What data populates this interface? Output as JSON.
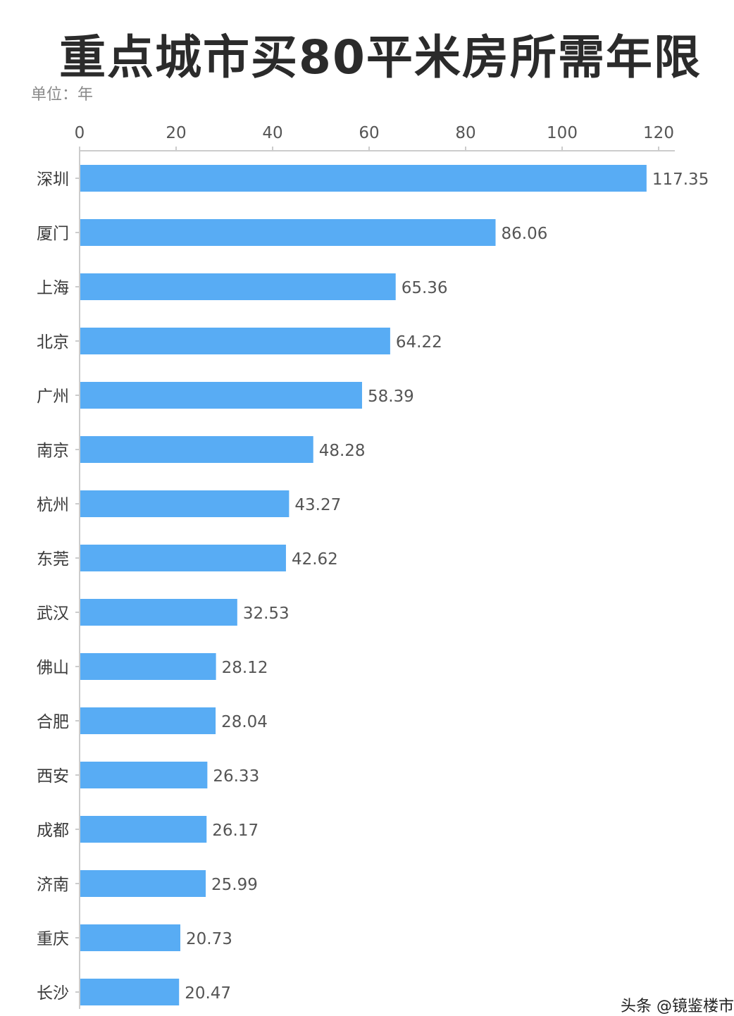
{
  "colors": {
    "bar": "#58acf4",
    "axis": "#cccccc",
    "text": "#555555"
  },
  "chart_data": {
    "type": "bar",
    "orientation": "horizontal",
    "title": "重点城市买80平米房所需年限",
    "unit": "单位：年",
    "categories": [
      "深圳",
      "厦门",
      "上海",
      "北京",
      "广州",
      "南京",
      "杭州",
      "东莞",
      "武汉",
      "佛山",
      "合肥",
      "西安",
      "成都",
      "济南",
      "重庆",
      "长沙"
    ],
    "values": [
      117.35,
      86.06,
      65.36,
      64.22,
      58.39,
      48.28,
      43.27,
      42.62,
      32.53,
      28.12,
      28.04,
      26.33,
      26.17,
      25.99,
      20.73,
      20.47
    ],
    "value_labels": [
      "117.35",
      "86.06",
      "65.36",
      "64.22",
      "58.39",
      "48.28",
      "43.27",
      "42.62",
      "32.53",
      "28.12",
      "28.04",
      "26.33",
      "26.17",
      "25.99",
      "20.73",
      "20.47"
    ],
    "xlim": [
      0,
      120
    ],
    "xticks": [
      0,
      20,
      40,
      60,
      80,
      100,
      120
    ],
    "x_axis_position": "top",
    "grid": false,
    "legend": "none"
  },
  "footer": "头条 @镜鉴楼市"
}
